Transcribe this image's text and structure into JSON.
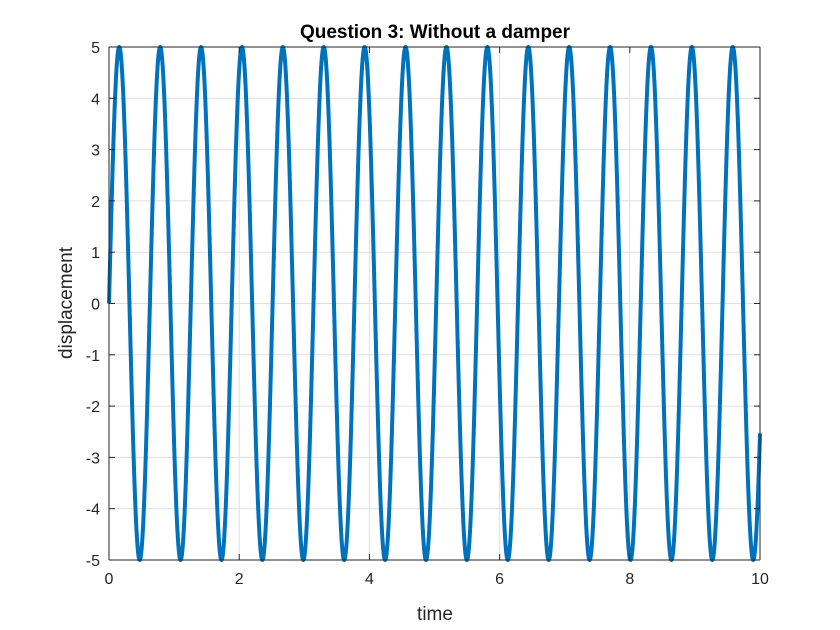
{
  "chart_data": {
    "type": "line",
    "title": "Question 3: Without a damper",
    "xlabel": "time",
    "ylabel": "displacement",
    "xlim": [
      0,
      10
    ],
    "ylim": [
      -5,
      5
    ],
    "x_ticks": [
      0,
      2,
      4,
      6,
      8,
      10
    ],
    "y_ticks": [
      5,
      4,
      3,
      2,
      1,
      0,
      -1,
      -2,
      -3,
      -4,
      -5
    ],
    "grid": true,
    "legend": "none",
    "series": [
      {
        "function": "y = 5 sin(10 t)",
        "amplitude": 5,
        "angular_frequency": 10,
        "x_start": 0,
        "x_end": 10,
        "color": "#0072BD"
      }
    ]
  },
  "colors": {
    "line": "#0072BD",
    "axes": "#262626",
    "grid": "#DFDFDF",
    "background": "#FFFFFF"
  }
}
